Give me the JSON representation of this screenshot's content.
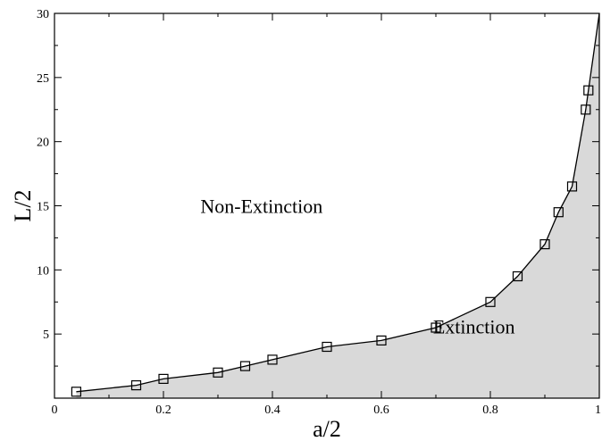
{
  "chart_data": {
    "type": "line",
    "title": "",
    "xlabel": "a/2",
    "ylabel": "L/2",
    "xlim": [
      0,
      1
    ],
    "ylim": [
      0,
      30
    ],
    "grid": false,
    "x_ticks": [
      0,
      0.2,
      0.4,
      0.6,
      0.8,
      1
    ],
    "x_tick_labels": [
      "0",
      "0.2",
      "0.4",
      "0.6",
      "0.8",
      "1"
    ],
    "y_ticks": [
      5,
      10,
      15,
      20,
      25,
      30
    ],
    "y_tick_labels": [
      "5",
      "10",
      "15",
      "20",
      "25",
      "30"
    ],
    "series": [
      {
        "marker": "square",
        "fill_below": "#d9d9d9",
        "x": [
          0.04,
          0.15,
          0.2,
          0.3,
          0.35,
          0.4,
          0.5,
          0.6,
          0.7,
          0.8,
          0.85,
          0.9,
          0.925,
          0.95,
          0.975,
          0.98
        ],
        "y": [
          0.5,
          1.0,
          1.5,
          2.0,
          2.5,
          3.0,
          4.0,
          4.5,
          5.5,
          7.5,
          9.5,
          12.0,
          14.5,
          16.5,
          22.5,
          24.0
        ]
      }
    ],
    "curve_tail": {
      "x": [
        0.99,
        1.0
      ],
      "y": [
        27.0,
        30.0
      ]
    },
    "annotations": [
      {
        "text": "Non-Extinction",
        "x": 0.38,
        "y": 15.0
      },
      {
        "text": "Extinction",
        "x": 0.77,
        "y": 5.6
      }
    ]
  }
}
